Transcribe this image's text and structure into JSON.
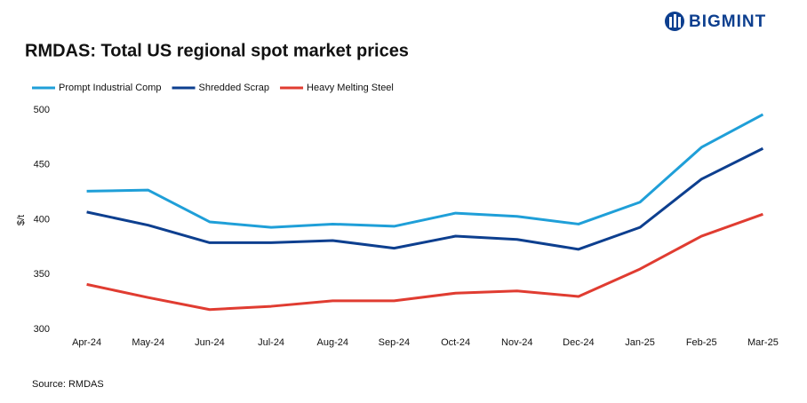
{
  "logo": "BIGMINT",
  "chart_data": {
    "type": "line",
    "title": "RMDAS: Total US regional spot market prices",
    "y_label": "$/t",
    "source": "Source: RMDAS",
    "categories": [
      "Apr-24",
      "May-24",
      "Jun-24",
      "Jul-24",
      "Aug-24",
      "Sep-24",
      "Oct-24",
      "Nov-24",
      "Dec-24",
      "Jan-25",
      "Feb-25",
      "Mar-25"
    ],
    "series": [
      {
        "name": "Prompt Industrial Comp",
        "color": "#1f9fd8",
        "values": [
          426,
          427,
          398,
          393,
          396,
          394,
          406,
          403,
          396,
          416,
          466,
          496
        ]
      },
      {
        "name": "Shredded Scrap",
        "color": "#0d3f8f",
        "values": [
          407,
          395,
          379,
          379,
          381,
          374,
          385,
          382,
          373,
          393,
          437,
          465
        ]
      },
      {
        "name": "Heavy Melting Steel",
        "color": "#e03c31",
        "values": [
          341,
          329,
          318,
          321,
          326,
          326,
          333,
          335,
          330,
          355,
          385,
          405
        ]
      }
    ],
    "ylim": [
      300,
      500
    ],
    "yticks": [
      300,
      350,
      400,
      450,
      500
    ],
    "grid": false
  }
}
